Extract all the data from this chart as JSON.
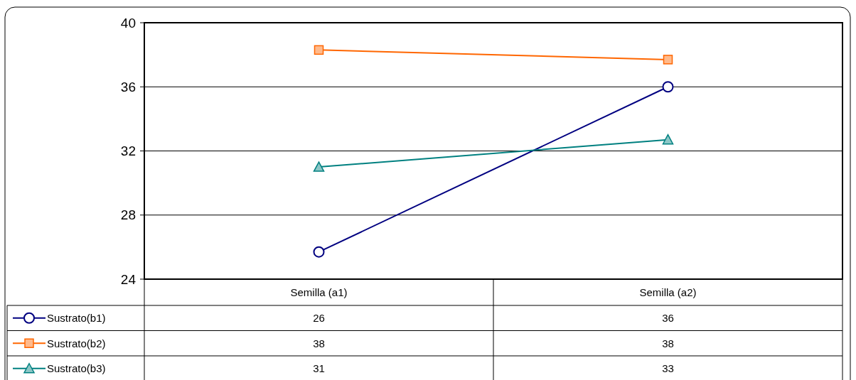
{
  "chart_data": {
    "type": "line",
    "categories": [
      "Semilla (a1)",
      "Semilla (a2)"
    ],
    "series": [
      {
        "name": "Sustrato(b1)",
        "color": "#000080",
        "marker": "circle",
        "values": [
          25.7,
          36.0
        ],
        "value_labels": [
          "26",
          "36"
        ]
      },
      {
        "name": "Sustrato(b2)",
        "color": "#ff6600",
        "marker": "square",
        "values": [
          38.3,
          37.7
        ],
        "value_labels": [
          "38",
          "38"
        ]
      },
      {
        "name": "Sustrato(b3)",
        "color": "#008080",
        "marker": "triangle",
        "values": [
          31.0,
          32.7
        ],
        "value_labels": [
          "31",
          "33"
        ]
      }
    ],
    "ylim": [
      24,
      40
    ],
    "yticks": [
      24,
      28,
      32,
      36,
      40
    ],
    "grid": "y",
    "legend": "bottom"
  }
}
